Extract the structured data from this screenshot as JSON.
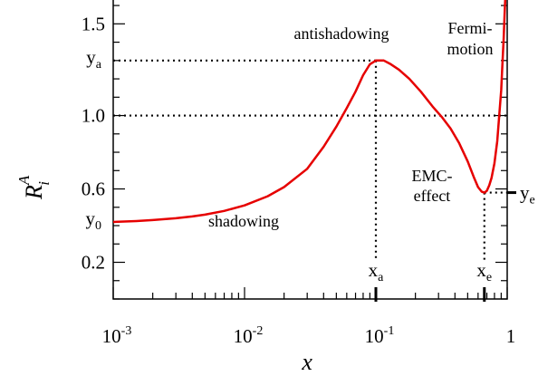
{
  "chart_data": {
    "type": "line",
    "x_scale": "log",
    "y_scale": "linear",
    "xlim": [
      0.001,
      1
    ],
    "ylim": [
      0.0,
      1.63
    ],
    "grid": false,
    "xlabel": "x",
    "ylabel": {
      "main": "R",
      "sup": "A",
      "sub": "i"
    },
    "x_ticks": [
      {
        "base": "10",
        "exp": "-3"
      },
      {
        "base": "10",
        "exp": "-2"
      },
      {
        "base": "10",
        "exp": "-1"
      },
      {
        "base": "1",
        "exp": ""
      }
    ],
    "y_ticks": [
      "0.2",
      "0.6",
      "1.0",
      "1.5"
    ],
    "series": [
      {
        "color": "#e60000",
        "points": [
          [
            0.001,
            0.42
          ],
          [
            0.0015,
            0.425
          ],
          [
            0.002,
            0.43
          ],
          [
            0.003,
            0.44
          ],
          [
            0.004,
            0.45
          ],
          [
            0.005,
            0.46
          ],
          [
            0.007,
            0.48
          ],
          [
            0.01,
            0.51
          ],
          [
            0.015,
            0.56
          ],
          [
            0.02,
            0.61
          ],
          [
            0.03,
            0.71
          ],
          [
            0.04,
            0.83
          ],
          [
            0.05,
            0.94
          ],
          [
            0.06,
            1.04
          ],
          [
            0.07,
            1.13
          ],
          [
            0.08,
            1.22
          ],
          [
            0.09,
            1.28
          ],
          [
            0.1,
            1.3
          ],
          [
            0.115,
            1.3
          ],
          [
            0.13,
            1.28
          ],
          [
            0.15,
            1.25
          ],
          [
            0.18,
            1.2
          ],
          [
            0.22,
            1.13
          ],
          [
            0.27,
            1.05
          ],
          [
            0.32,
            0.99
          ],
          [
            0.37,
            0.93
          ],
          [
            0.43,
            0.85
          ],
          [
            0.5,
            0.75
          ],
          [
            0.56,
            0.66
          ],
          [
            0.6,
            0.61
          ],
          [
            0.64,
            0.585
          ],
          [
            0.67,
            0.58
          ],
          [
            0.7,
            0.59
          ],
          [
            0.73,
            0.62
          ],
          [
            0.76,
            0.66
          ],
          [
            0.8,
            0.74
          ],
          [
            0.84,
            0.86
          ],
          [
            0.87,
            1.0
          ],
          [
            0.9,
            1.14
          ],
          [
            0.92,
            1.28
          ],
          [
            0.94,
            1.42
          ],
          [
            0.955,
            1.55
          ],
          [
            0.965,
            1.63
          ]
        ]
      }
    ],
    "markers": {
      "y0": {
        "label": "y",
        "sub": "0",
        "y": 0.42
      },
      "ya": {
        "label": "y",
        "sub": "a",
        "y": 1.3
      },
      "xa": {
        "label": "x",
        "sub": "a",
        "x": 0.1
      },
      "xe": {
        "label": "x",
        "sub": "e",
        "x": 0.67
      },
      "ye": {
        "label": "y",
        "sub": "e",
        "y": 0.58
      },
      "one": {
        "y": 1.0
      }
    },
    "annotations": {
      "antishadowing": "antishadowing",
      "fermi_line1": "Fermi-",
      "fermi_line2": "motion",
      "emc_line1": "EMC-",
      "emc_line2": "effect",
      "shadowing": "shadowing"
    }
  }
}
